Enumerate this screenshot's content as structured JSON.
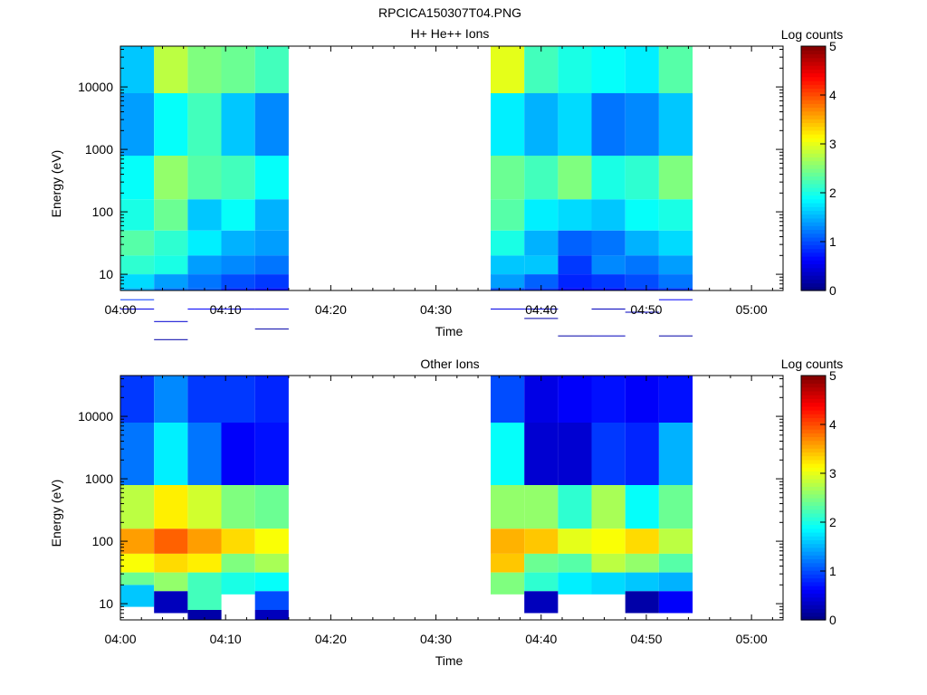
{
  "figure_title": "RPCICA150307T04.PNG",
  "colormap": [
    "#00007f",
    "#0000ff",
    "#007fff",
    "#00ffff",
    "#7fff7f",
    "#ffff00",
    "#ff7f00",
    "#ff0000",
    "#7f0000"
  ],
  "chart_data": [
    {
      "type": "heatmap",
      "title": "H+ He++ Ions",
      "xlabel": "Time",
      "ylabel": "Energy (eV)",
      "colorbar_label": "Log counts",
      "colorbar_ticks": [
        "0",
        "1",
        "2",
        "3",
        "4",
        "5"
      ],
      "x_ticks": [
        "04:00",
        "04:10",
        "04:20",
        "04:30",
        "04:40",
        "04:50",
        "05:00"
      ],
      "y_ticks": [
        "10",
        "100",
        "1000",
        "10000"
      ],
      "y_scale": "log",
      "xlim": [
        "04:00",
        "05:03"
      ],
      "ylim": [
        5.5,
        45000
      ],
      "clim": [
        0,
        5
      ],
      "columns": [
        {
          "start": "04:00:00",
          "end": "04:03:12",
          "bins": [
            [
              8.2,
              1.6
            ],
            [
              3.9,
              1.4
            ],
            [
              2.9,
              1.9
            ],
            [
              2.2,
              2.0
            ],
            [
              1.7,
              2.3
            ],
            [
              1.3,
              2.1
            ],
            [
              1.0,
              1.7
            ],
            [
              0.78,
              1.5
            ],
            [
              0.6,
              0.9
            ],
            [
              0.45,
              0.5
            ]
          ]
        },
        {
          "start": "04:03:12",
          "end": "04:06:24",
          "bins": [
            [
              8.2,
              2.8
            ],
            [
              3.9,
              1.9
            ],
            [
              2.9,
              2.6
            ],
            [
              2.2,
              2.4
            ],
            [
              1.7,
              2.1
            ],
            [
              1.3,
              2.0
            ],
            [
              1.0,
              1.4
            ],
            [
              0.78,
              1.2
            ],
            [
              0.25,
              0.4
            ],
            [
              -0.04,
              0.2
            ]
          ]
        },
        {
          "start": "04:06:24",
          "end": "04:09:36",
          "bins": [
            [
              8.2,
              2.5
            ],
            [
              3.9,
              2.2
            ],
            [
              2.9,
              2.3
            ],
            [
              2.2,
              1.6
            ],
            [
              1.7,
              1.8
            ],
            [
              1.3,
              1.4
            ],
            [
              1.0,
              1.2
            ],
            [
              0.78,
              1.1
            ],
            [
              0.45,
              0.6
            ]
          ]
        },
        {
          "start": "04:09:36",
          "end": "04:12:48",
          "bins": [
            [
              8.2,
              2.4
            ],
            [
              3.9,
              1.6
            ],
            [
              2.9,
              2.2
            ],
            [
              2.2,
              1.9
            ],
            [
              1.7,
              1.5
            ],
            [
              1.3,
              1.3
            ],
            [
              1.0,
              1.0
            ],
            [
              0.78,
              0.8
            ],
            [
              0.45,
              0.5
            ]
          ]
        },
        {
          "start": "04:12:48",
          "end": "04:16:00",
          "bins": [
            [
              8.2,
              2.2
            ],
            [
              3.9,
              1.3
            ],
            [
              2.9,
              1.9
            ],
            [
              2.2,
              1.5
            ],
            [
              1.7,
              1.4
            ],
            [
              1.3,
              1.2
            ],
            [
              1.0,
              0.9
            ],
            [
              0.78,
              0.7
            ],
            [
              0.45,
              0.5
            ],
            [
              0.13,
              0.2
            ]
          ]
        },
        {
          "start": "04:35:12",
          "end": "04:38:24",
          "bins": [
            [
              8.2,
              3.0
            ],
            [
              3.9,
              1.8
            ],
            [
              2.9,
              2.4
            ],
            [
              2.2,
              2.3
            ],
            [
              1.7,
              2.0
            ],
            [
              1.3,
              1.6
            ],
            [
              1.0,
              1.4
            ],
            [
              0.78,
              1.0
            ],
            [
              0.45,
              0.5
            ]
          ]
        },
        {
          "start": "04:38:24",
          "end": "04:41:36",
          "bins": [
            [
              8.2,
              2.2
            ],
            [
              3.9,
              1.5
            ],
            [
              2.9,
              2.2
            ],
            [
              2.2,
              1.8
            ],
            [
              1.7,
              1.5
            ],
            [
              1.3,
              1.6
            ],
            [
              1.0,
              1.1
            ],
            [
              0.78,
              0.9
            ],
            [
              0.45,
              0.4
            ],
            [
              0.3,
              0.2
            ]
          ]
        },
        {
          "start": "04:41:36",
          "end": "04:44:48",
          "bins": [
            [
              8.2,
              2.0
            ],
            [
              3.9,
              1.7
            ],
            [
              2.9,
              2.5
            ],
            [
              2.2,
              1.7
            ],
            [
              1.7,
              1.1
            ],
            [
              1.3,
              0.9
            ],
            [
              1.0,
              0.8
            ],
            [
              0.78,
              0.6
            ],
            [
              0.02,
              0.2
            ]
          ]
        },
        {
          "start": "04:44:48",
          "end": "04:48:00",
          "bins": [
            [
              8.2,
              1.9
            ],
            [
              3.9,
              1.2
            ],
            [
              2.9,
              2.0
            ],
            [
              2.2,
              1.6
            ],
            [
              1.7,
              1.2
            ],
            [
              1.3,
              1.3
            ],
            [
              1.0,
              0.9
            ],
            [
              0.78,
              0.7
            ],
            [
              0.45,
              0.3
            ],
            [
              0.02,
              0.3
            ]
          ]
        },
        {
          "start": "04:48:00",
          "end": "04:51:12",
          "bins": [
            [
              8.2,
              1.8
            ],
            [
              3.9,
              1.3
            ],
            [
              2.9,
              2.1
            ],
            [
              2.2,
              1.9
            ],
            [
              1.7,
              1.5
            ],
            [
              1.3,
              1.2
            ],
            [
              1.0,
              1.0
            ],
            [
              0.78,
              0.8
            ],
            [
              0.4,
              0.3
            ]
          ]
        },
        {
          "start": "04:51:12",
          "end": "04:54:24",
          "bins": [
            [
              8.2,
              2.3
            ],
            [
              3.9,
              1.6
            ],
            [
              2.9,
              2.5
            ],
            [
              2.2,
              2.0
            ],
            [
              1.7,
              1.7
            ],
            [
              1.3,
              1.4
            ],
            [
              1.0,
              1.2
            ],
            [
              0.78,
              0.9
            ],
            [
              0.6,
              0.6
            ],
            [
              0.02,
              0.2
            ]
          ]
        }
      ]
    },
    {
      "type": "heatmap",
      "title": "Other Ions",
      "xlabel": "Time",
      "ylabel": "Energy (eV)",
      "colorbar_label": "Log counts",
      "colorbar_ticks": [
        "0",
        "1",
        "2",
        "3",
        "4",
        "5"
      ],
      "x_ticks": [
        "04:00",
        "04:10",
        "04:20",
        "04:30",
        "04:40",
        "04:50",
        "05:00"
      ],
      "y_ticks": [
        "10",
        "100",
        "1000",
        "10000"
      ],
      "y_scale": "log",
      "xlim": [
        "04:00",
        "05:03"
      ],
      "ylim": [
        5.5,
        45000
      ],
      "clim": [
        0,
        5
      ],
      "columns": [
        {
          "start": "04:00:00",
          "end": "04:03:12",
          "bins": [
            [
              8.2,
              0.9
            ],
            [
              3.9,
              1.2
            ],
            [
              2.9,
              2.8
            ],
            [
              2.2,
              3.6
            ],
            [
              1.8,
              3.1
            ],
            [
              1.5,
              2.4
            ],
            [
              1.3,
              1.6
            ]
          ]
        },
        {
          "start": "04:03:12",
          "end": "04:06:24",
          "bins": [
            [
              8.2,
              1.3
            ],
            [
              3.9,
              1.8
            ],
            [
              2.9,
              3.2
            ],
            [
              2.2,
              3.9
            ],
            [
              1.8,
              3.3
            ],
            [
              1.5,
              2.6
            ],
            [
              1.2,
              0.3
            ]
          ]
        },
        {
          "start": "04:06:24",
          "end": "04:09:36",
          "bins": [
            [
              8.2,
              0.9
            ],
            [
              3.9,
              1.2
            ],
            [
              2.9,
              2.9
            ],
            [
              2.2,
              3.6
            ],
            [
              1.8,
              3.2
            ],
            [
              1.5,
              2.2
            ],
            [
              0.9,
              0.2
            ]
          ]
        },
        {
          "start": "04:09:36",
          "end": "04:12:48",
          "bins": [
            [
              8.2,
              0.9
            ],
            [
              3.9,
              0.6
            ],
            [
              2.9,
              2.5
            ],
            [
              2.2,
              3.3
            ],
            [
              1.8,
              2.5
            ],
            [
              1.5,
              2.0
            ]
          ]
        },
        {
          "start": "04:12:48",
          "end": "04:16:00",
          "bins": [
            [
              8.2,
              0.8
            ],
            [
              3.9,
              0.7
            ],
            [
              2.9,
              2.4
            ],
            [
              2.2,
              3.1
            ],
            [
              1.8,
              2.7
            ],
            [
              1.5,
              1.9
            ],
            [
              1.2,
              1.0
            ],
            [
              0.9,
              0.3
            ]
          ]
        },
        {
          "start": "04:35:12",
          "end": "04:38:24",
          "bins": [
            [
              8.2,
              1.0
            ],
            [
              3.9,
              1.9
            ],
            [
              2.9,
              2.6
            ],
            [
              2.2,
              3.5
            ],
            [
              1.8,
              3.4
            ],
            [
              1.5,
              2.5
            ]
          ]
        },
        {
          "start": "04:38:24",
          "end": "04:41:36",
          "bins": [
            [
              8.2,
              0.5
            ],
            [
              3.9,
              0.4
            ],
            [
              2.9,
              2.6
            ],
            [
              2.2,
              3.4
            ],
            [
              1.8,
              2.4
            ],
            [
              1.5,
              2.1
            ],
            [
              1.2,
              0.3
            ]
          ]
        },
        {
          "start": "04:41:36",
          "end": "04:44:48",
          "bins": [
            [
              8.2,
              0.6
            ],
            [
              3.9,
              0.4
            ],
            [
              2.9,
              2.1
            ],
            [
              2.2,
              3.0
            ],
            [
              1.8,
              2.3
            ],
            [
              1.5,
              1.8
            ]
          ]
        },
        {
          "start": "04:44:48",
          "end": "04:48:00",
          "bins": [
            [
              8.2,
              0.7
            ],
            [
              3.9,
              0.9
            ],
            [
              2.9,
              2.7
            ],
            [
              2.2,
              3.1
            ],
            [
              1.8,
              2.8
            ],
            [
              1.5,
              1.7
            ]
          ]
        },
        {
          "start": "04:48:00",
          "end": "04:51:12",
          "bins": [
            [
              8.2,
              0.6
            ],
            [
              3.9,
              0.8
            ],
            [
              2.9,
              1.9
            ],
            [
              2.2,
              3.3
            ],
            [
              1.8,
              2.6
            ],
            [
              1.5,
              1.6
            ],
            [
              1.2,
              0.2
            ]
          ]
        },
        {
          "start": "04:51:12",
          "end": "04:54:24",
          "bins": [
            [
              8.2,
              0.7
            ],
            [
              3.9,
              1.5
            ],
            [
              2.9,
              2.4
            ],
            [
              2.2,
              2.8
            ],
            [
              1.8,
              2.3
            ],
            [
              1.5,
              1.5
            ],
            [
              1.2,
              0.6
            ]
          ]
        }
      ]
    }
  ]
}
